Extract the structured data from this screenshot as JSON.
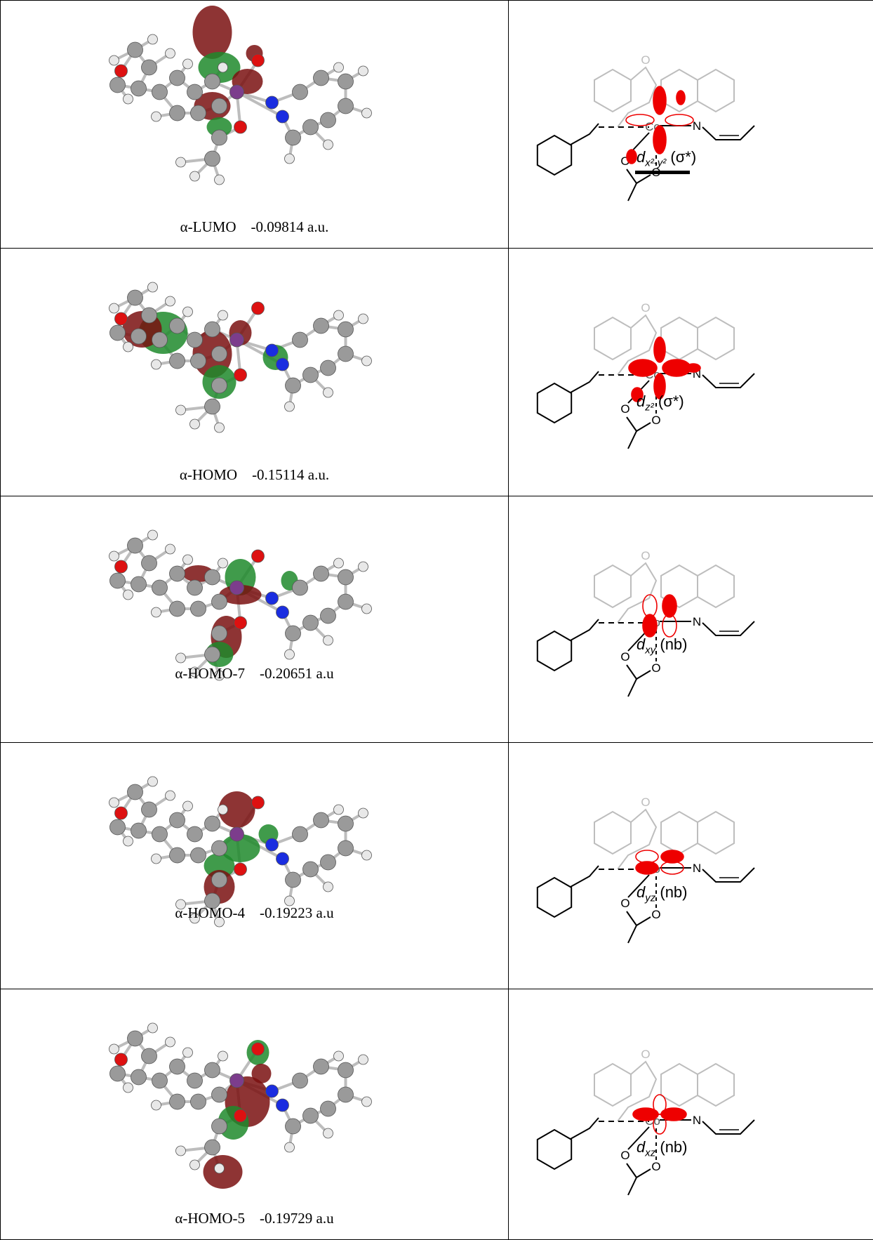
{
  "rows": [
    {
      "mo": "α-LUMO",
      "energy": "-0.09814 a.u.",
      "orbital_base": "d",
      "orbital_sub": "x²-y²",
      "character": "(σ*)",
      "underlined": true
    },
    {
      "mo": "α-HOMO",
      "energy": "-0.15114 a.u.",
      "orbital_base": "d",
      "orbital_sub": "z²",
      "character": "(σ*)",
      "underlined": false
    },
    {
      "mo": "α-HOMO-7",
      "energy": "-0.20651 a.u",
      "orbital_base": "d",
      "orbital_sub": "xy",
      "character": "(nb)",
      "underlined": false
    },
    {
      "mo": "α-HOMO-4",
      "energy": "-0.19223 a.u",
      "orbital_base": "d",
      "orbital_sub": "yz",
      "character": "(nb)",
      "underlined": false
    },
    {
      "mo": "α-HOMO-5",
      "energy": "-0.19729 a.u",
      "orbital_base": "d",
      "orbital_sub": "xz",
      "character": "(nb)",
      "underlined": false
    }
  ],
  "atom_labels": {
    "oxygen": "O",
    "nitrogen": "N",
    "cobalt": "Co"
  },
  "colors": {
    "orbital_positive": "#7a1010",
    "orbital_negative": "#1f8a2c",
    "lobe_red": "#ee0000",
    "carbon": "#9a9a9a",
    "nitrogen": "#1a2de0",
    "oxygen": "#dd1111",
    "faded_bond": "#bdbdbd"
  }
}
